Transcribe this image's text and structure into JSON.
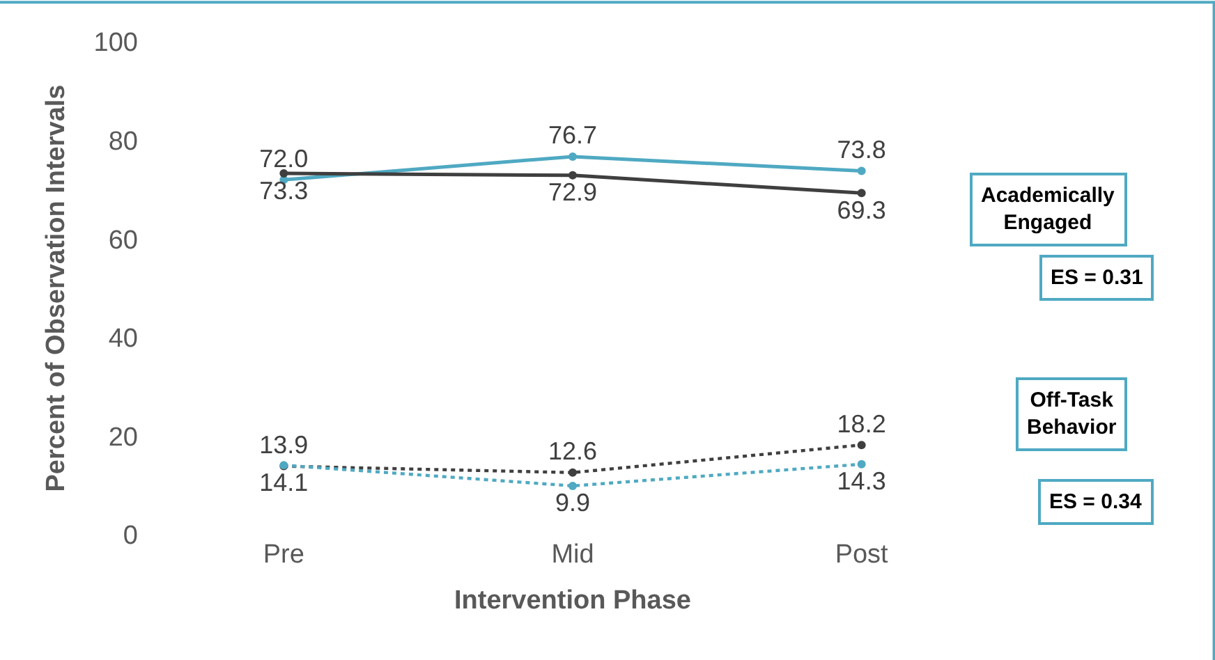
{
  "chart_data": {
    "type": "line",
    "xlabel": "Intervention Phase",
    "ylabel": "Percent of Observation Intervals",
    "categories": [
      "Pre",
      "Mid",
      "Post"
    ],
    "series": [
      {
        "color": "#4fa9c2",
        "values": [
          72.0,
          76.7,
          73.8
        ],
        "value_labels": [
          "72.0",
          "76.7",
          "73.8"
        ],
        "line_style": "solid"
      },
      {
        "color": "#3f3f3f",
        "values": [
          73.3,
          72.9,
          69.3
        ],
        "value_labels": [
          "73.3",
          "72.9",
          "69.3"
        ],
        "line_style": "solid"
      },
      {
        "color": "#3f3f3f",
        "values": [
          13.9,
          12.6,
          18.2
        ],
        "value_labels": [
          "13.9",
          "12.6",
          "18.2"
        ],
        "line_style": "dotted"
      },
      {
        "color": "#4fa9c2",
        "values": [
          14.1,
          9.9,
          14.3
        ],
        "value_labels": [
          "14.1",
          "9.9",
          "14.3"
        ],
        "line_style": "dotted"
      }
    ],
    "ylim": [
      0,
      100
    ],
    "yticks": [
      0,
      20,
      40,
      60,
      80,
      100
    ],
    "marker": "circle",
    "annotations": [
      "Academically\nEngaged",
      "ES = 0.31",
      "Off-Task\nBehavior",
      "ES = 0.34"
    ]
  }
}
